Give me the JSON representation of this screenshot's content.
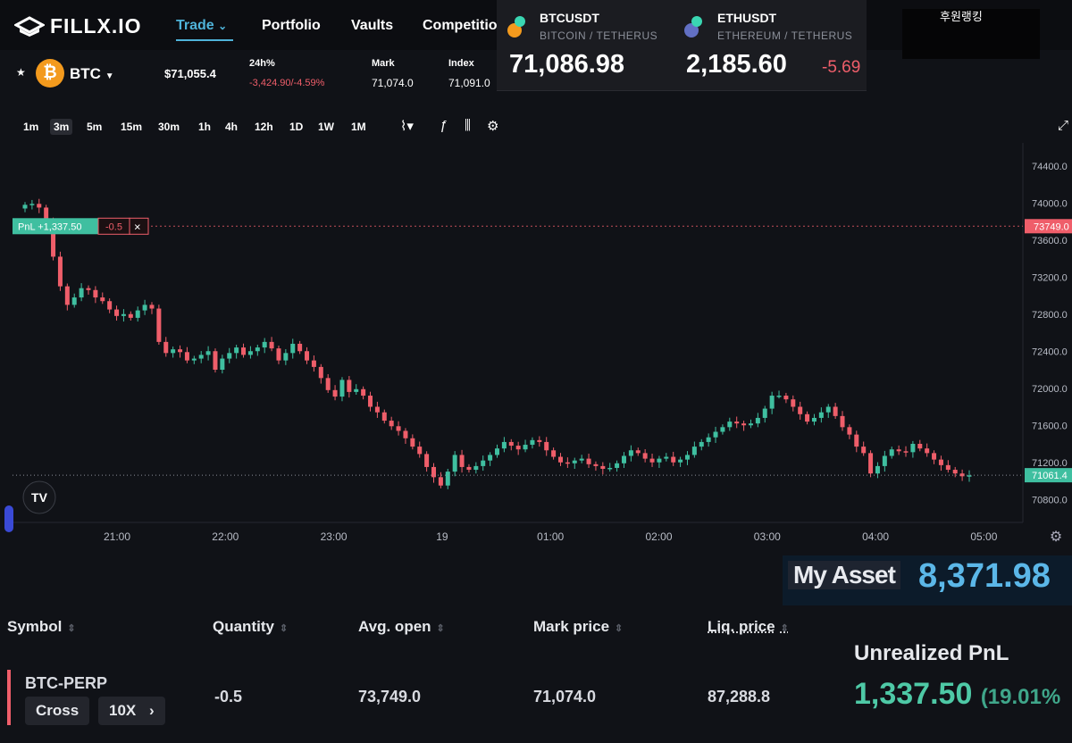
{
  "nav": {
    "logo": "FILLX.IO",
    "items": [
      "Trade",
      "Portfolio",
      "Vaults",
      "Competitio"
    ],
    "trade_chevron": "⌄"
  },
  "ticker_overlay": {
    "btc": {
      "symbol": "BTCUSDT",
      "pair": "BITCOIN / TETHERUS",
      "price": "71,086.98"
    },
    "eth": {
      "symbol": "ETHUSDT",
      "pair": "ETHEREUM / TETHERUS",
      "price": "2,185.60",
      "change": "-5.69"
    }
  },
  "korean_label": "후원랭킹",
  "market": {
    "symbol": "BTC",
    "coin_glyph": "₿",
    "last_price": "$71,055.4",
    "change_label": "24h%",
    "change_abs": "-3,424.90",
    "change_pct": "-4.59%",
    "mark_label": "Mark",
    "mark_value": "71,074.0",
    "index_label": "Index",
    "index_value": "71,091.0"
  },
  "timeframes": [
    "1m",
    "3m",
    "5m",
    "15m",
    "30m",
    "1h",
    "4h",
    "12h",
    "1D",
    "1W",
    "1M"
  ],
  "active_timeframe": "3m",
  "chart_data": {
    "type": "candlestick",
    "x_ticks": [
      "21:00",
      "22:00",
      "23:00",
      "19",
      "01:00",
      "02:00",
      "03:00",
      "04:00",
      "05:00"
    ],
    "y_ticks": [
      "74400.0",
      "74000.0",
      "73600.0",
      "73200.0",
      "72800.0",
      "72400.0",
      "72000.0",
      "71600.0",
      "71200.0",
      "70800.0"
    ],
    "ylim": [
      70600,
      74600
    ],
    "position_line": {
      "price": 73749.0,
      "label": "73749.0",
      "pnl_tag": "PnL +1,337.50",
      "qty_tag": "-0.5",
      "close": "×"
    },
    "last_price_line": {
      "price": 71061.4,
      "label": "71061.4"
    },
    "closes": [
      73980,
      73990,
      73950,
      73800,
      73420,
      73100,
      72900,
      72980,
      73080,
      73060,
      72980,
      72940,
      72850,
      72780,
      72800,
      72760,
      72840,
      72900,
      72860,
      72500,
      72380,
      72420,
      72390,
      72300,
      72320,
      72360,
      72400,
      72200,
      72320,
      72380,
      72440,
      72360,
      72400,
      72440,
      72500,
      72430,
      72300,
      72380,
      72480,
      72400,
      72300,
      72230,
      72110,
      71980,
      71910,
      72090,
      71960,
      71990,
      71920,
      71800,
      71740,
      71650,
      71590,
      71540,
      71460,
      71370,
      71290,
      71150,
      71040,
      70950,
      71100,
      71280,
      71150,
      71120,
      71160,
      71220,
      71280,
      71350,
      71420,
      71380,
      71340,
      71390,
      71440,
      71420,
      71330,
      71260,
      71200,
      71190,
      71220,
      71240,
      71180,
      71160,
      71130,
      71140,
      71190,
      71270,
      71330,
      71300,
      71240,
      71200,
      71240,
      71260,
      71200,
      71230,
      71280,
      71370,
      71420,
      71470,
      71530,
      71580,
      71640,
      71620,
      71600,
      71620,
      71680,
      71780,
      71920,
      71920,
      71880,
      71800,
      71720,
      71640,
      71680,
      71740,
      71800,
      71700,
      71580,
      71500,
      71370,
      71300,
      71080,
      71160,
      71270,
      71340,
      71320,
      71310,
      71400,
      71350,
      71300,
      71230,
      71170,
      71120,
      71080,
      71050,
      71060
    ]
  },
  "my_asset": {
    "label": "My Asset",
    "value": "8,371.98"
  },
  "positions": {
    "headers": [
      "Symbol",
      "Quantity",
      "Avg. open",
      "Mark price",
      "Liq. price"
    ],
    "row": {
      "symbol": "BTC-PERP",
      "margin": "Cross",
      "leverage": "10X",
      "quantity": "-0.5",
      "avg_open": "73,749.0",
      "mark": "71,074.0",
      "liq": "87,288.8"
    }
  },
  "unrealized": {
    "label": "Unrealized PnL",
    "value": "1,337.50",
    "pct": "(19.01%"
  }
}
